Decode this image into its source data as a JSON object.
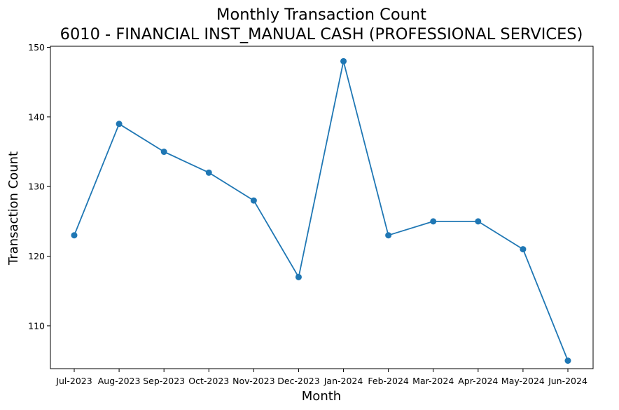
{
  "chart_data": {
    "type": "line",
    "title": "Monthly Transaction Count",
    "subtitle": "6010 - FINANCIAL INST_MANUAL CASH (PROFESSIONAL SERVICES)",
    "xlabel": "Month",
    "ylabel": "Transaction Count",
    "categories": [
      "Jul-2023",
      "Aug-2023",
      "Sep-2023",
      "Oct-2023",
      "Nov-2023",
      "Dec-2023",
      "Jan-2024",
      "Feb-2024",
      "Mar-2024",
      "Apr-2024",
      "May-2024",
      "Jun-2024"
    ],
    "series": [
      {
        "values": [
          123,
          139,
          135,
          132,
          128,
          117,
          148,
          123,
          125,
          125,
          121,
          105
        ]
      }
    ],
    "ylim": [
      103.85,
      150.15
    ],
    "yticks": [
      110,
      120,
      130,
      140,
      150
    ],
    "grid": false,
    "legend": "none",
    "colors": {
      "line": "#1f77b4",
      "marker": "#1f77b4"
    }
  }
}
